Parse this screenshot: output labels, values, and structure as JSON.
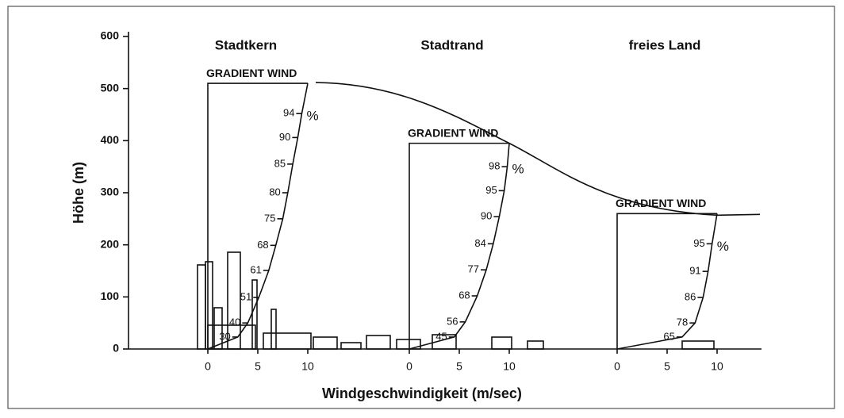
{
  "chart_data": {
    "type": "wind-profile",
    "y_label": "Höhe (m)",
    "x_label": "Windgeschwindigkeit (m/sec)",
    "ylim": [
      0,
      600
    ],
    "yticks": [
      0,
      100,
      200,
      300,
      400,
      500,
      600
    ],
    "percent_sign": "%",
    "panels": [
      {
        "title": "Stadtkern",
        "gradient_label": "GRADIENT WIND",
        "gradient_height": 510,
        "xlim": [
          0,
          10
        ],
        "xticks": [
          0,
          5,
          10
        ],
        "profile": [
          {
            "percent": 94,
            "height": 452
          },
          {
            "percent": 90,
            "height": 406
          },
          {
            "percent": 85,
            "height": 355
          },
          {
            "percent": 80,
            "height": 300
          },
          {
            "percent": 75,
            "height": 250
          },
          {
            "percent": 68,
            "height": 199
          },
          {
            "percent": 61,
            "height": 151
          },
          {
            "percent": 51,
            "height": 99
          },
          {
            "percent": 40,
            "height": 50
          },
          {
            "percent": 30,
            "height": 23
          }
        ]
      },
      {
        "title": "Stadtrand",
        "gradient_label": "GRADIENT WIND",
        "gradient_height": 395,
        "xlim": [
          0,
          10
        ],
        "xticks": [
          0,
          5,
          10
        ],
        "profile": [
          {
            "percent": 98,
            "height": 350
          },
          {
            "percent": 95,
            "height": 304
          },
          {
            "percent": 90,
            "height": 254
          },
          {
            "percent": 84,
            "height": 202
          },
          {
            "percent": 77,
            "height": 152
          },
          {
            "percent": 68,
            "height": 102
          },
          {
            "percent": 56,
            "height": 52
          },
          {
            "percent": 45,
            "height": 23
          }
        ]
      },
      {
        "title": "freies Land",
        "gradient_label": "GRADIENT WIND",
        "gradient_height": 260,
        "xlim": [
          0,
          10
        ],
        "xticks": [
          0,
          5,
          10
        ],
        "profile": [
          {
            "percent": 95,
            "height": 202
          },
          {
            "percent": 91,
            "height": 149
          },
          {
            "percent": 86,
            "height": 99
          },
          {
            "percent": 78,
            "height": 50
          },
          {
            "percent": 65,
            "height": 23
          }
        ]
      }
    ]
  }
}
